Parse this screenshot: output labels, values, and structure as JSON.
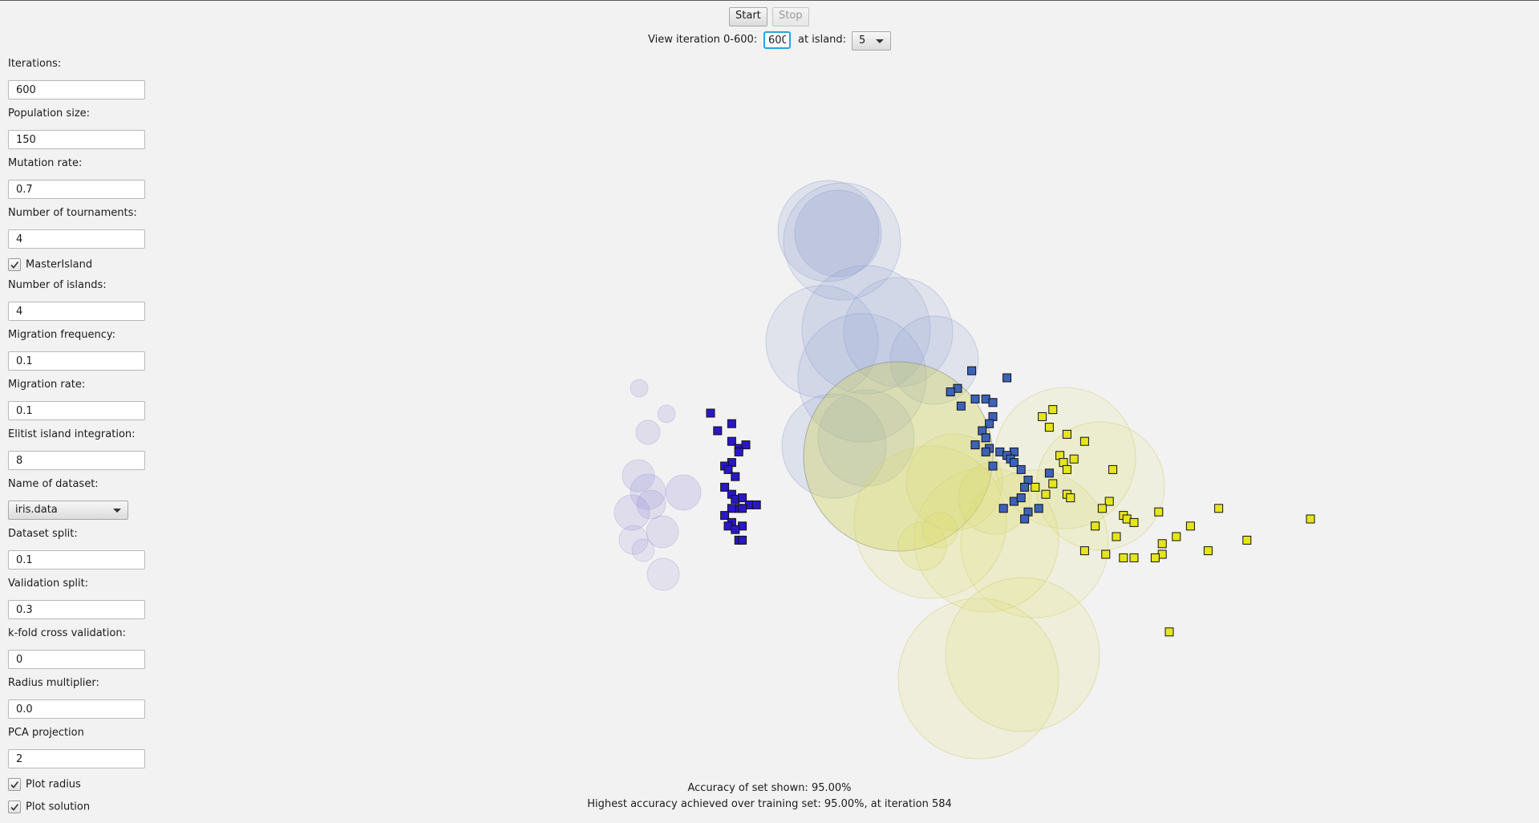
{
  "toolbar": {
    "start_label": "Start",
    "stop_label": "Stop",
    "view_iteration_label": "View iteration 0-600:",
    "iteration_value": "600",
    "at_island_label": "at island:",
    "island_value": "5"
  },
  "settings": {
    "iterations": {
      "label": "Iterations:",
      "value": "600"
    },
    "population_size": {
      "label": "Population size:",
      "value": "150"
    },
    "mutation_rate": {
      "label": "Mutation rate:",
      "value": "0.7"
    },
    "tournaments": {
      "label": "Number of tournaments:",
      "value": "4"
    },
    "master_island": {
      "label": "MasterIsland",
      "checked": true
    },
    "islands": {
      "label": "Number of islands:",
      "value": "4"
    },
    "migration_frequency": {
      "label": "Migration frequency:",
      "value": "0.1"
    },
    "migration_rate": {
      "label": "Migration rate:",
      "value": "0.1"
    },
    "elitist_integration": {
      "label": "Elitist island integration:",
      "value": "8"
    },
    "dataset_name": {
      "label": "Name of dataset:",
      "value": "iris.data"
    },
    "dataset_split": {
      "label": "Dataset split:",
      "value": "0.1"
    },
    "validation_split": {
      "label": "Validation split:",
      "value": "0.3"
    },
    "kfold": {
      "label": "k-fold cross validation:",
      "value": "0"
    },
    "radius_multiplier": {
      "label": "Radius multiplier:",
      "value": "0.0"
    },
    "pca_projection": {
      "label": "PCA projection",
      "value": "2"
    },
    "plot_radius": {
      "label": "Plot radius",
      "checked": true
    },
    "plot_solution": {
      "label": "Plot solution",
      "checked": true
    }
  },
  "status": {
    "accuracy_shown": "Accuracy of set shown: 95.00%",
    "highest_accuracy": "Highest accuracy achieved over training set: 95.00%, at iteration 584"
  },
  "colors": {
    "class_violet": "#2a17c8",
    "class_blue": "#3d63b8",
    "class_yellow": "#e5e51c",
    "violet_circle": "#8a80d0",
    "blue_circle": "#8e9ed0",
    "yellow_circle": "#dede70"
  },
  "chart_data": {
    "type": "scatter",
    "series": [
      {
        "values": [
          [
            -3.0,
            0.5
          ],
          [
            -2.7,
            0.35
          ],
          [
            -2.9,
            0.25
          ],
          [
            -2.7,
            0.1
          ],
          [
            -2.6,
            0.0
          ],
          [
            -2.5,
            0.05
          ],
          [
            -2.6,
            -0.05
          ],
          [
            -2.7,
            -0.2
          ],
          [
            -2.8,
            -0.25
          ],
          [
            -2.75,
            -0.3
          ],
          [
            -2.65,
            -0.4
          ],
          [
            -2.8,
            -0.55
          ],
          [
            -2.7,
            -0.65
          ],
          [
            -2.65,
            -0.72
          ],
          [
            -2.55,
            -0.7
          ],
          [
            -2.45,
            -0.8
          ],
          [
            -2.6,
            -0.85
          ],
          [
            -2.7,
            -0.85
          ],
          [
            -2.55,
            -0.85
          ],
          [
            -2.35,
            -0.8
          ],
          [
            -2.8,
            -0.95
          ],
          [
            -2.7,
            -1.05
          ],
          [
            -2.75,
            -1.1
          ],
          [
            -2.55,
            -1.1
          ],
          [
            -2.65,
            -1.15
          ],
          [
            -2.6,
            -1.3
          ],
          [
            -2.55,
            -1.3
          ]
        ]
      },
      {
        "values": [
          [
            0.7,
            1.1
          ],
          [
            1.2,
            1.0
          ],
          [
            0.5,
            0.85
          ],
          [
            0.4,
            0.8
          ],
          [
            0.75,
            0.7
          ],
          [
            0.9,
            0.7
          ],
          [
            1.0,
            0.65
          ],
          [
            0.55,
            0.6
          ],
          [
            1.0,
            0.45
          ],
          [
            0.95,
            0.35
          ],
          [
            0.85,
            0.25
          ],
          [
            0.9,
            0.15
          ],
          [
            0.75,
            0.05
          ],
          [
            0.95,
            0.0
          ],
          [
            0.9,
            -0.05
          ],
          [
            1.1,
            -0.05
          ],
          [
            1.3,
            -0.05
          ],
          [
            1.2,
            -0.1
          ],
          [
            1.25,
            -0.15
          ],
          [
            1.3,
            -0.2
          ],
          [
            1.0,
            -0.25
          ],
          [
            1.4,
            -0.3
          ],
          [
            1.5,
            -0.45
          ],
          [
            1.8,
            -0.35
          ],
          [
            1.45,
            -0.55
          ],
          [
            1.3,
            -0.75
          ],
          [
            1.4,
            -0.7
          ],
          [
            1.15,
            -0.85
          ],
          [
            1.5,
            -0.9
          ],
          [
            1.65,
            -0.85
          ],
          [
            1.45,
            -1.0
          ]
        ]
      },
      {
        "values": [
          [
            1.85,
            0.55
          ],
          [
            1.7,
            0.45
          ],
          [
            1.8,
            0.3
          ],
          [
            2.05,
            0.2
          ],
          [
            2.3,
            0.1
          ],
          [
            1.95,
            -0.1
          ],
          [
            2.0,
            -0.2
          ],
          [
            2.15,
            -0.15
          ],
          [
            2.05,
            -0.3
          ],
          [
            2.7,
            -0.3
          ],
          [
            1.85,
            -0.5
          ],
          [
            1.6,
            -0.55
          ],
          [
            1.75,
            -0.65
          ],
          [
            2.05,
            -0.65
          ],
          [
            2.1,
            -0.7
          ],
          [
            2.65,
            -0.75
          ],
          [
            2.55,
            -0.85
          ],
          [
            3.35,
            -0.9
          ],
          [
            2.85,
            -0.95
          ],
          [
            2.9,
            -1.0
          ],
          [
            3.0,
            -1.05
          ],
          [
            2.45,
            -1.1
          ],
          [
            2.75,
            -1.25
          ],
          [
            3.4,
            -1.35
          ],
          [
            2.3,
            -1.45
          ],
          [
            2.6,
            -1.5
          ],
          [
            2.85,
            -1.55
          ],
          [
            3.0,
            -1.55
          ],
          [
            4.2,
            -0.85
          ],
          [
            3.8,
            -1.1
          ],
          [
            3.6,
            -1.25
          ],
          [
            3.4,
            -1.5
          ],
          [
            3.3,
            -1.55
          ],
          [
            4.05,
            -1.45
          ],
          [
            4.6,
            -1.3
          ],
          [
            5.5,
            -1.0
          ],
          [
            3.5,
            -2.6
          ]
        ]
      }
    ]
  }
}
